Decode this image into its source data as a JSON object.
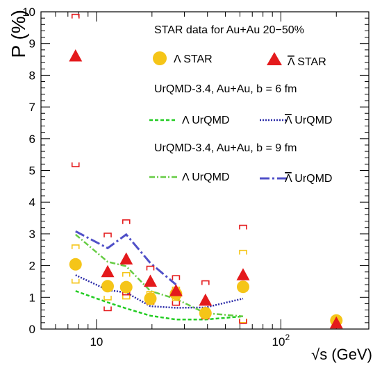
{
  "chart_data": {
    "type": "scatter",
    "xlabel": "√s (GeV)",
    "ylabel": "P (%)",
    "xscale": "log",
    "xlim": [
      5,
      300
    ],
    "ylim": [
      0,
      10
    ],
    "x_tick_labels": [
      {
        "value": 10,
        "base": "10",
        "exp": ""
      },
      {
        "value": 100,
        "base": "10",
        "exp": "2"
      }
    ],
    "y_ticks": [
      0,
      1,
      2,
      3,
      4,
      5,
      6,
      7,
      8,
      9,
      10
    ],
    "grid": false,
    "legend": {
      "header1": "STAR data for Au+Au 20−50%",
      "lambda_star": "Λ STAR",
      "antilambda_star_sym": "Λ",
      "antilambda_star_rest": " STAR",
      "header2": "UrQMD-3.4, Au+Au, b = 6 fm",
      "lambda_urqmd_b6": "Λ UrQMD",
      "antilambda_urqmd_b6_sym": "Λ",
      "antilambda_urqmd_b6_rest": " UrQMD",
      "header3": "UrQMD-3.4, Au+Au, b = 9 fm",
      "lambda_urqmd_b9": "Λ UrQMD",
      "antilambda_urqmd_b9_sym": "Λ",
      "antilambda_urqmd_b9_rest": " UrQMD"
    },
    "series": [
      {
        "name": "Λ STAR",
        "kind": "points",
        "marker": "circle",
        "color": "#f5c518",
        "x": [
          7.7,
          11.5,
          14.5,
          19.6,
          27,
          39,
          62.4,
          200
        ],
        "y": [
          2.04,
          1.35,
          1.32,
          0.96,
          1.11,
          0.5,
          1.33,
          0.27
        ],
        "sys_low": [
          1.45,
          0.92,
          0.95,
          0.78,
          0.9,
          0.4,
          0.2,
          0.2
        ],
        "sys_high": [
          2.65,
          1.78,
          1.78,
          1.18,
          1.32,
          0.62,
          2.48,
          0.35
        ]
      },
      {
        "name": "Λ̄ STAR",
        "kind": "points",
        "marker": "triangle",
        "color": "#e41a1c",
        "x": [
          7.7,
          11.5,
          14.5,
          19.6,
          27,
          39,
          62.4,
          200
        ],
        "y": [
          8.6,
          1.8,
          2.2,
          1.5,
          1.2,
          0.9,
          1.7,
          0.18
        ],
        "sys_low": [
          5.12,
          0.58,
          1.08,
          0.8,
          0.75,
          0.32,
          0.18,
          0.1
        ],
        "sys_high": [
          9.92,
          3.02,
          3.44,
          1.98,
          1.68,
          1.52,
          3.27,
          0.25
        ]
      },
      {
        "name": "Λ UrQMD",
        "kind": "line",
        "style": "dashed",
        "color": "#22cc22",
        "x": [
          7.7,
          11.5,
          14.5,
          19.6,
          27,
          39,
          62.4
        ],
        "y": [
          1.2,
          0.84,
          0.65,
          0.42,
          0.3,
          0.3,
          0.4
        ]
      },
      {
        "name": "Λ̄ UrQMD",
        "kind": "line",
        "style": "dotted",
        "color": "#2a2aa8",
        "x": [
          7.7,
          11.5,
          14.5,
          19.6,
          27,
          39,
          62.4
        ],
        "y": [
          1.7,
          1.23,
          1.15,
          0.72,
          0.67,
          0.68,
          0.96
        ]
      },
      {
        "name": "Λ UrQMD",
        "kind": "line",
        "style": "dashdot",
        "color": "#66cc44",
        "x": [
          7.7,
          11.5,
          14.5,
          19.6,
          27,
          39,
          62.4
        ],
        "y": [
          2.98,
          2.12,
          1.98,
          1.2,
          0.95,
          0.5,
          0.4
        ]
      },
      {
        "name": "Λ̄ UrQMD",
        "kind": "line",
        "style": "longdash",
        "color": "#5050c8",
        "x": [
          7.7,
          11.5,
          14.5,
          19.6,
          27
        ],
        "y": [
          3.08,
          2.55,
          2.98,
          2.08,
          1.4
        ]
      }
    ]
  }
}
